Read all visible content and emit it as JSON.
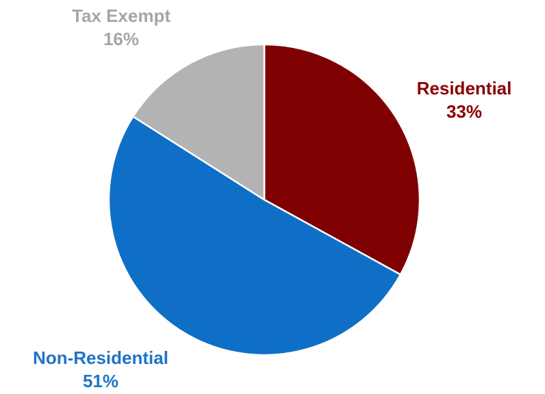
{
  "chart_data": {
    "type": "pie",
    "start_angle_deg": 0,
    "direction": "clockwise",
    "slices": [
      {
        "name": "Residential",
        "value": 33,
        "label": "33%",
        "color": "#7f0000"
      },
      {
        "name": "Non-Residential",
        "value": 51,
        "label": "51%",
        "color": "#0f6fc6"
      },
      {
        "name": "Tax Exempt",
        "value": 16,
        "label": "16%",
        "color": "#b3b3b3"
      }
    ],
    "label_colors": {
      "Residential": "#8b0000",
      "Non-Residential": "#1f73c8",
      "Tax Exempt": "#a6a6a6"
    },
    "border_color": "#ffffff"
  }
}
